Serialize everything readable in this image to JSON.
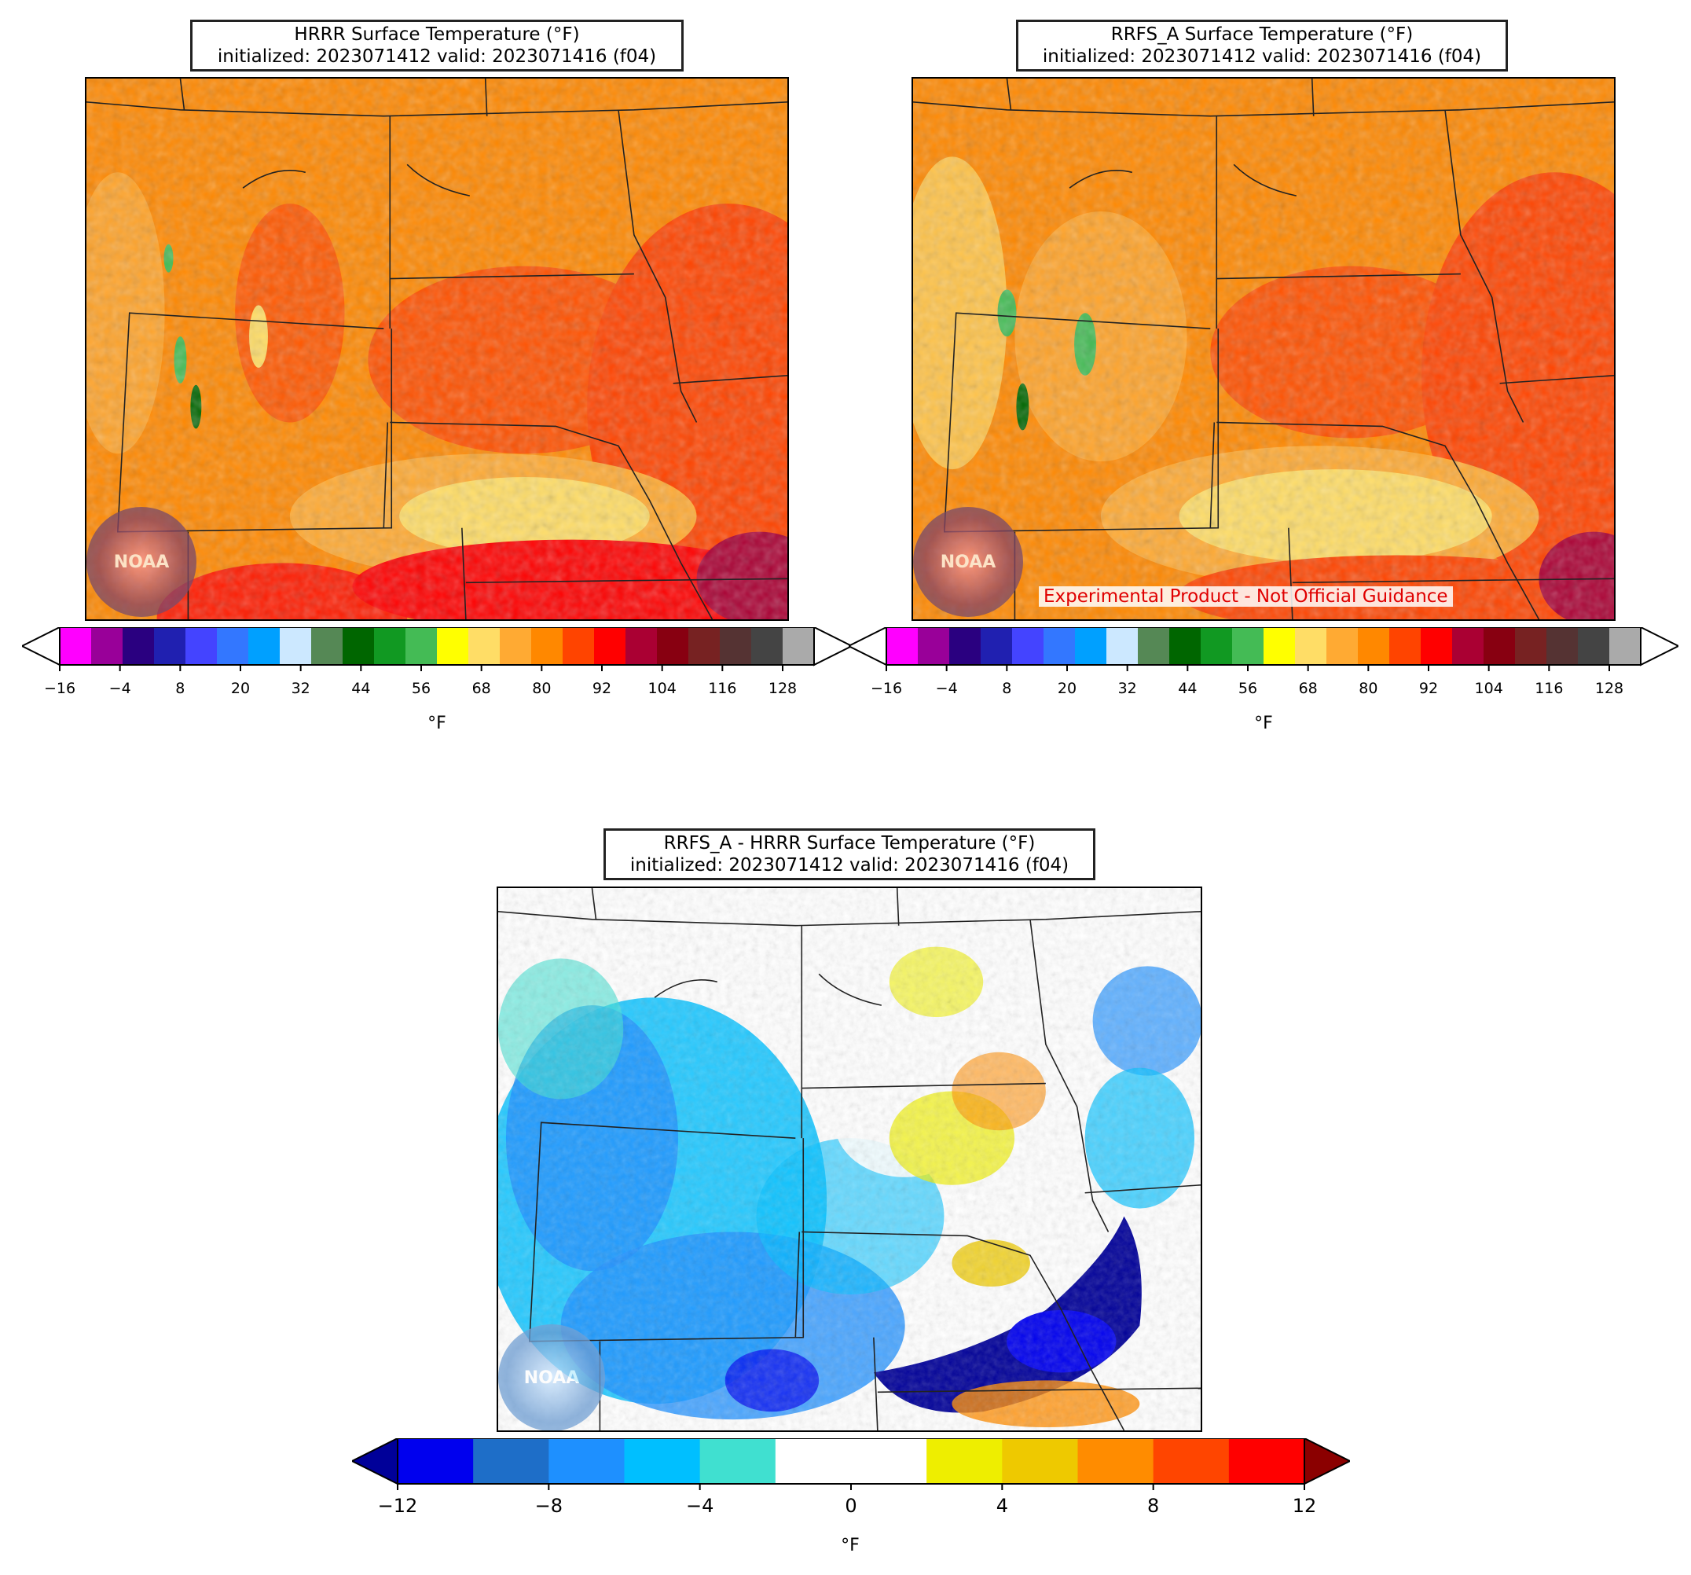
{
  "panels": [
    {
      "title_line1": "HRRR Surface Temperature (°F)",
      "title_line2": "initialized: 2023071412 valid: 2023071416 (f04)"
    },
    {
      "title_line1": "RRFS_A Surface Temperature (°F)",
      "title_line2": "initialized: 2023071412 valid: 2023071416 (f04)",
      "disclaimer": "Experimental Product - Not Official Guidance"
    },
    {
      "title_line1": "RRFS_A - HRRR Surface Temperature (°F)",
      "title_line2": "initialized: 2023071412 valid: 2023071416 (f04)"
    }
  ],
  "logo_text": "NOAA",
  "temp_colorbar": {
    "unit": "°F",
    "ticks": [
      "−16",
      "−4",
      "8",
      "20",
      "32",
      "44",
      "56",
      "68",
      "80",
      "92",
      "104",
      "116",
      "128"
    ],
    "colors": [
      "#ff00ff",
      "#990099",
      "#2a0080",
      "#2020b0",
      "#4444ff",
      "#3377ff",
      "#00a0ff",
      "#cce8ff",
      "#558855",
      "#006600",
      "#119922",
      "#44bb55",
      "#ffff00",
      "#ffdd66",
      "#ffaa33",
      "#ff8800",
      "#ff4400",
      "#ff0000",
      "#aa0033",
      "#880011",
      "#772222",
      "#553333",
      "#444444",
      "#aaaaaa"
    ]
  },
  "diff_colorbar": {
    "unit": "°F",
    "ticks": [
      "−12",
      "−8",
      "−4",
      "0",
      "4",
      "8",
      "12"
    ],
    "colors": [
      "#0000ee",
      "#1e6ec8",
      "#1e90ff",
      "#00bfff",
      "#40e0d0",
      "#ffffff",
      "#ffffff",
      "#eeee00",
      "#eec900",
      "#ff8c00",
      "#ff4500",
      "#ff0000"
    ],
    "under_color": "#000099",
    "over_color": "#8b0000"
  }
}
